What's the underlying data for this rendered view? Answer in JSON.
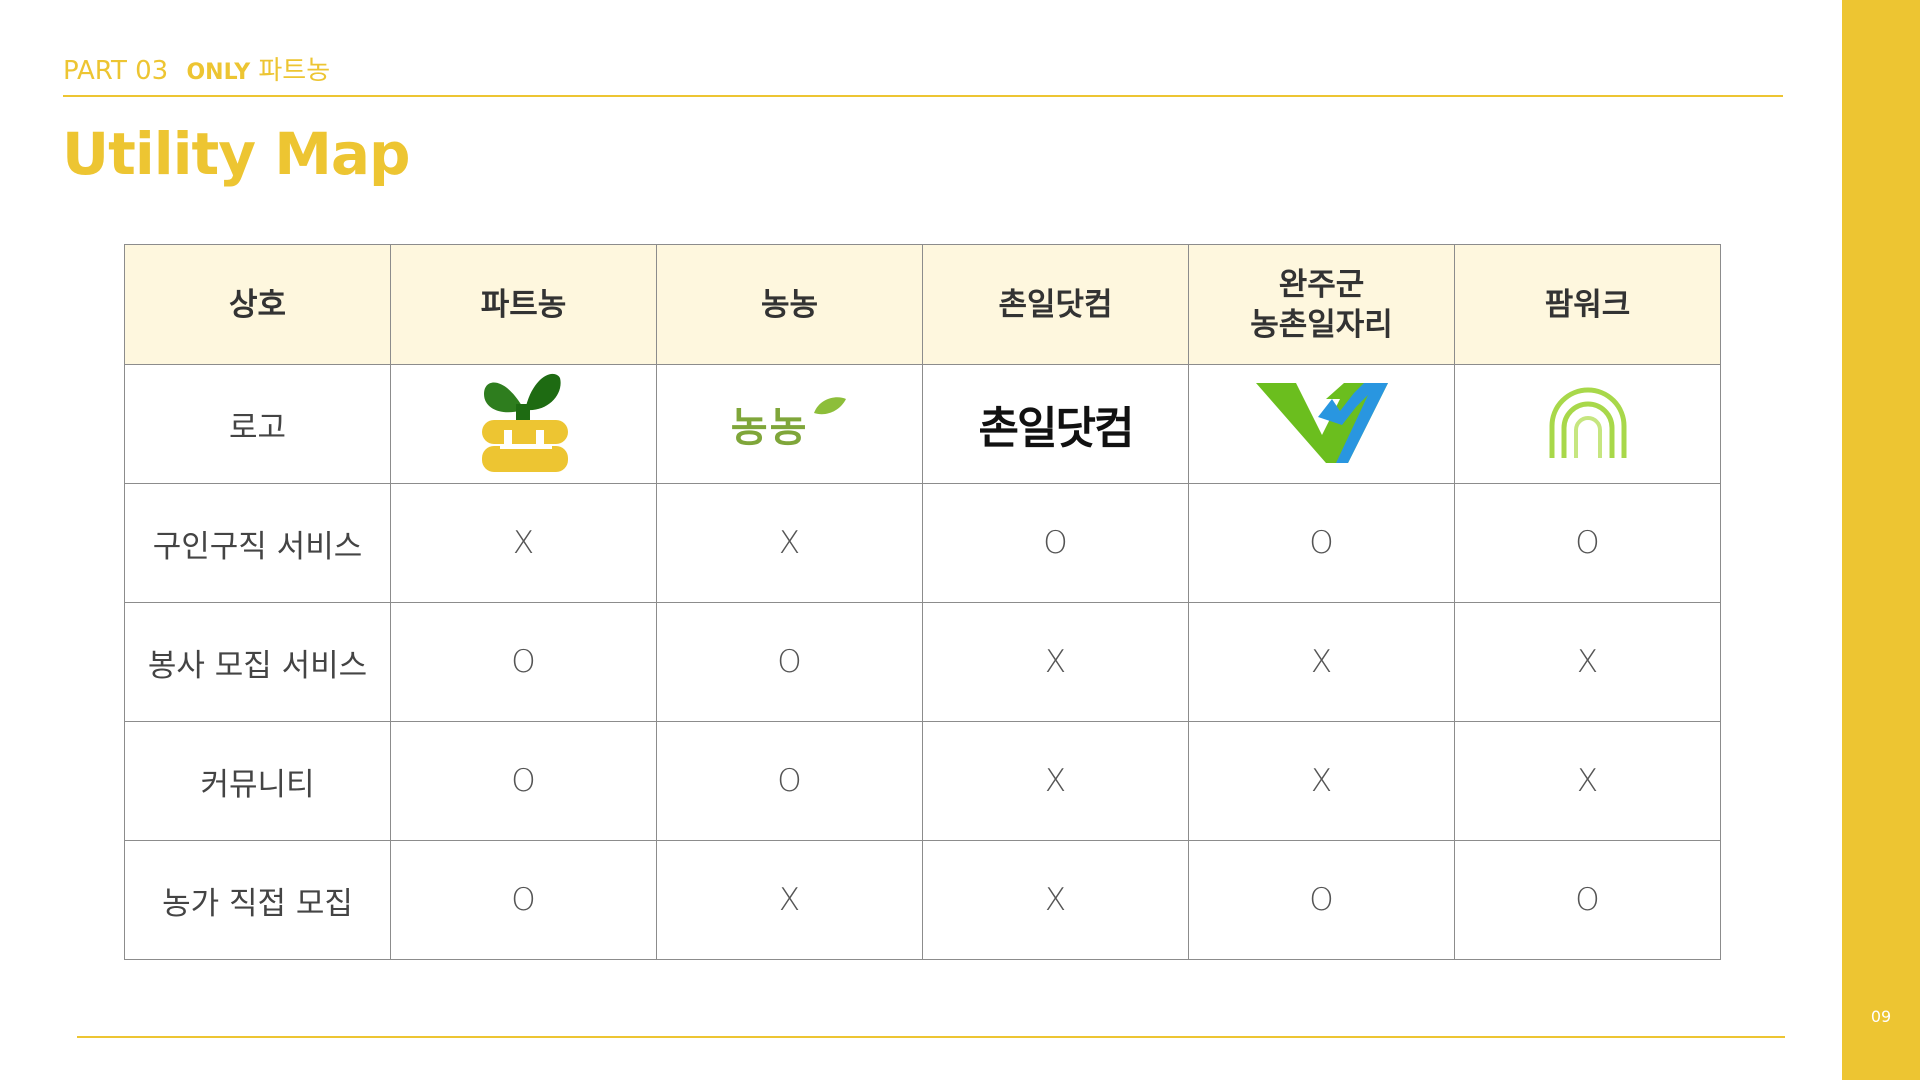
{
  "header": {
    "part": "PART 03",
    "only": "ONLY",
    "only_name": "파트농",
    "title": "Utility Map"
  },
  "page_number": "09",
  "colors": {
    "accent": "#EDC532",
    "header_bg": "#FEF7DE"
  },
  "table": {
    "columns": [
      "상호",
      "파트농",
      "농농",
      "촌일닷컴",
      "완주군\n농촌일자리",
      "팜워크"
    ],
    "logo_row_label": "로고",
    "logos": [
      {
        "icon": "partnong-logo-icon"
      },
      {
        "icon": "nongnong-logo-icon",
        "text": "농농"
      },
      {
        "icon": "chonil-logo-icon",
        "text": "촌일닷컴"
      },
      {
        "icon": "wanju-logo-icon"
      },
      {
        "icon": "farmwork-logo-icon"
      }
    ],
    "rows": [
      {
        "label": "구인구직 서비스",
        "values": [
          "X",
          "X",
          "O",
          "O",
          "O"
        ]
      },
      {
        "label": "봉사 모집 서비스",
        "values": [
          "O",
          "O",
          "X",
          "X",
          "X"
        ]
      },
      {
        "label": "커뮤니티",
        "values": [
          "O",
          "O",
          "X",
          "X",
          "X"
        ]
      },
      {
        "label": "농가 직접 모집",
        "values": [
          "O",
          "X",
          "X",
          "O",
          "O"
        ]
      }
    ]
  }
}
